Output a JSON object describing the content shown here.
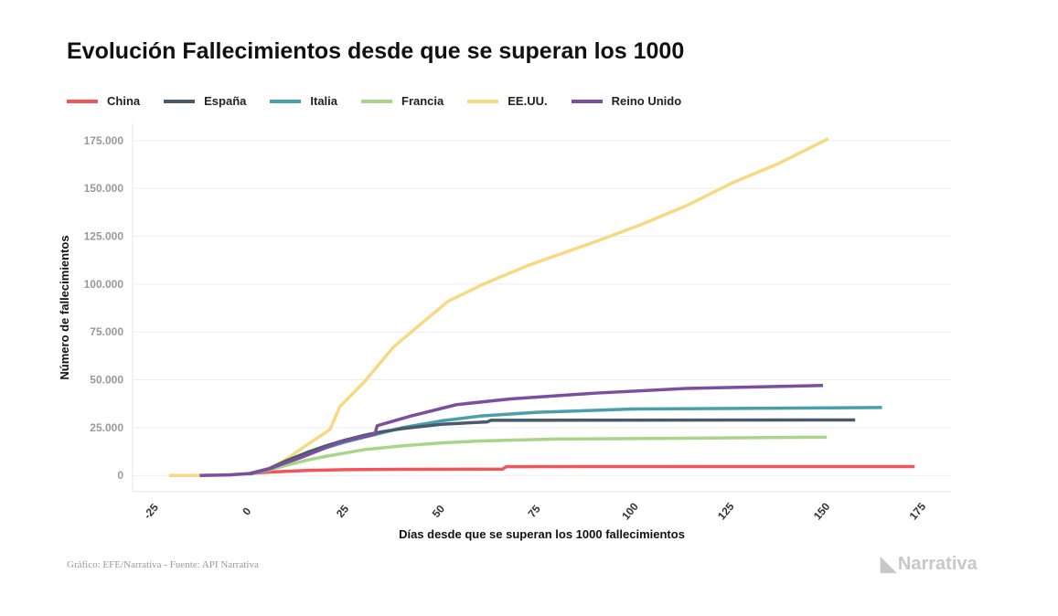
{
  "chart_data": {
    "type": "line",
    "title": "Evolución Fallecimientos desde que se superan los 1000",
    "xlabel": "Días desde que se superan los 1000 fallecimientos",
    "ylabel": "Número de fallecimientos",
    "xlim": [
      -30.5,
      183
    ],
    "ylim": [
      -8500,
      184000
    ],
    "xticks": [
      -25,
      0,
      25,
      50,
      75,
      100,
      125,
      150,
      175
    ],
    "xtick_labels": [
      "-25",
      "0",
      "25",
      "50",
      "75",
      "100",
      "125",
      "150",
      "175"
    ],
    "yticks": [
      0,
      25000,
      50000,
      75000,
      100000,
      125000,
      150000,
      175000
    ],
    "ytick_labels": [
      "0",
      "25.000",
      "50.000",
      "75.000",
      "100.000",
      "125.000",
      "150.000",
      "175.000"
    ],
    "grid": "horizontal",
    "legend": "top-left",
    "series": [
      {
        "name": "China",
        "color": "#f2545b",
        "x": [
          0,
          5,
          10,
          15,
          25,
          40,
          66,
          67,
          173.5
        ],
        "y": [
          1000,
          1700,
          2200,
          2600,
          3000,
          3200,
          3300,
          4600,
          4650
        ]
      },
      {
        "name": "España",
        "color": "#4a5a6a",
        "x": [
          0,
          5,
          10,
          15,
          20,
          25,
          30,
          35,
          40,
          50,
          62,
          63,
          158
        ],
        "y": [
          800,
          3500,
          8000,
          12000,
          15500,
          18500,
          21000,
          23000,
          24500,
          26700,
          28000,
          28800,
          29000
        ]
      },
      {
        "name": "Italia",
        "color": "#4a9fad",
        "x": [
          0,
          5,
          10,
          15,
          20,
          25,
          30,
          40,
          50,
          60,
          75,
          100,
          165
        ],
        "y": [
          800,
          3200,
          7000,
          11000,
          14500,
          17500,
          20000,
          25000,
          28500,
          31000,
          33000,
          34700,
          35500
        ]
      },
      {
        "name": "Francia",
        "color": "#a8d58a",
        "x": [
          0,
          5,
          10,
          15,
          20,
          30,
          40,
          50,
          60,
          80,
          150.6
        ],
        "y": [
          700,
          2800,
          5500,
          8000,
          10000,
          13500,
          15500,
          17000,
          18000,
          19000,
          20000
        ]
      },
      {
        "name": "EE.UU.",
        "color": "#f6d980",
        "x": [
          -21,
          -14,
          0,
          5,
          10,
          15,
          21,
          23.6,
          30,
          37.5,
          44.6,
          51.8,
          61,
          73,
          90,
          102,
          114,
          126,
          138,
          151
        ],
        "y": [
          0,
          0,
          800,
          3000,
          9000,
          16000,
          24000,
          36000,
          49000,
          67000,
          79000,
          91000,
          100000,
          110000,
          122000,
          131000,
          141000,
          153000,
          163000,
          176000
        ]
      },
      {
        "name": "Reino Unido",
        "color": "#7b4fa0",
        "x": [
          -13,
          -5,
          0,
          5,
          10,
          13.6,
          18,
          23,
          28,
          32.7,
          33.3,
          42,
          54,
          68,
          90,
          114,
          149.6
        ],
        "y": [
          0,
          300,
          1000,
          3500,
          7000,
          9500,
          13000,
          17000,
          19500,
          21500,
          26000,
          31000,
          37000,
          40000,
          43000,
          45500,
          47000
        ]
      }
    ]
  },
  "footer": {
    "source": "Gráfico: EFE/Narrativa - Fuente: API Narrativa",
    "logo": "Narrativa"
  }
}
